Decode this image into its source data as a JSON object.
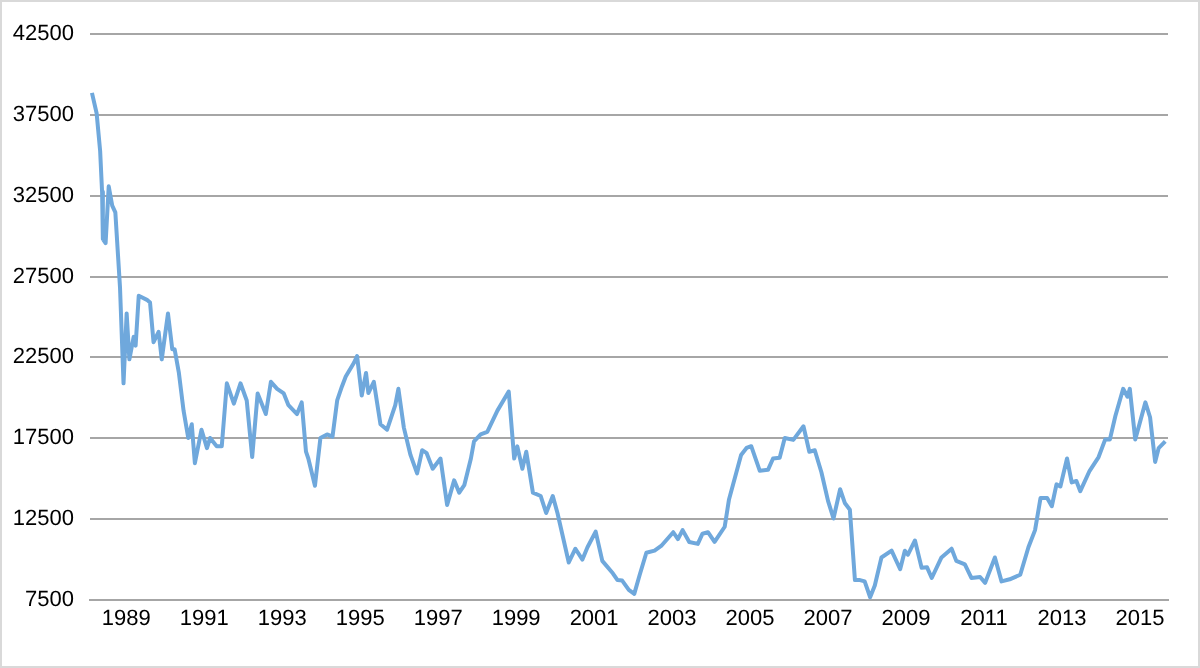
{
  "chart_data": {
    "type": "line",
    "x": [
      1988.12,
      1988.24,
      1988.33,
      1988.38,
      1988.4,
      1988.47,
      1988.55,
      1988.64,
      1988.72,
      1988.84,
      1988.93,
      1989.01,
      1989.08,
      1989.19,
      1989.24,
      1989.32,
      1989.53,
      1989.61,
      1989.7,
      1989.83,
      1989.91,
      1990.07,
      1990.18,
      1990.24,
      1990.35,
      1990.47,
      1990.59,
      1990.68,
      1990.76,
      1990.93,
      1991.07,
      1991.15,
      1991.32,
      1991.45,
      1991.58,
      1991.76,
      1991.93,
      1992.09,
      1992.23,
      1992.37,
      1992.58,
      1992.71,
      1992.87,
      1993.04,
      1993.16,
      1993.38,
      1993.5,
      1993.61,
      1993.67,
      1993.84,
      1993.98,
      1994.15,
      1994.29,
      1994.41,
      1994.53,
      1994.63,
      1994.84,
      1994.92,
      1995.04,
      1995.15,
      1995.21,
      1995.35,
      1995.52,
      1995.69,
      1995.9,
      1995.98,
      1996.12,
      1996.29,
      1996.46,
      1996.59,
      1996.7,
      1996.86,
      1997.06,
      1997.23,
      1997.41,
      1997.54,
      1997.67,
      1997.84,
      1997.92,
      1998.09,
      1998.26,
      1998.52,
      1998.81,
      1998.95,
      1999.03,
      1999.16,
      1999.26,
      1999.43,
      1999.63,
      1999.77,
      1999.94,
      2000.06,
      2000.35,
      2000.52,
      2000.7,
      2000.83,
      2001.04,
      2001.21,
      2001.48,
      2001.6,
      2001.72,
      2001.89,
      2002.03,
      2002.17,
      2002.34,
      2002.55,
      2002.72,
      2003.03,
      2003.15,
      2003.27,
      2003.44,
      2003.66,
      2003.78,
      2003.92,
      2004.09,
      2004.35,
      2004.46,
      2004.77,
      2004.91,
      2005.03,
      2005.25,
      2005.46,
      2005.59,
      2005.76,
      2005.89,
      2006.11,
      2006.37,
      2006.52,
      2006.66,
      2006.83,
      2007.0,
      2007.14,
      2007.31,
      2007.43,
      2007.56,
      2007.69,
      2007.82,
      2007.94,
      2008.08,
      2008.2,
      2008.37,
      2008.63,
      2008.85,
      2008.97,
      2009.05,
      2009.23,
      2009.4,
      2009.54,
      2009.66,
      2009.91,
      2010.17,
      2010.29,
      2010.51,
      2010.68,
      2010.9,
      2011.03,
      2011.28,
      2011.45,
      2011.66,
      2011.93,
      2012.14,
      2012.31,
      2012.45,
      2012.62,
      2012.74,
      2012.86,
      2012.96,
      2013.13,
      2013.25,
      2013.37,
      2013.47,
      2013.71,
      2013.94,
      2014.11,
      2014.23,
      2014.37,
      2014.57,
      2014.68,
      2014.74,
      2014.88,
      2015.14,
      2015.26,
      2015.39,
      2015.48,
      2015.65
    ],
    "series": [
      {
        "color": "#6fa8dc",
        "values": [
          38860,
          37600,
          35270,
          32740,
          29820,
          29570,
          33080,
          31890,
          31470,
          26810,
          20900,
          25220,
          22380,
          23770,
          23230,
          26310,
          26060,
          25890,
          23440,
          24080,
          22380,
          25220,
          23010,
          23010,
          21540,
          19210,
          17520,
          18370,
          15960,
          18030,
          16890,
          17520,
          17010,
          17010,
          20900,
          19640,
          20900,
          19840,
          16340,
          20270,
          19000,
          20990,
          20560,
          20270,
          19550,
          19000,
          19720,
          16670,
          16250,
          14560,
          17520,
          17740,
          17600,
          19840,
          20690,
          21320,
          22170,
          22590,
          20140,
          21540,
          20300,
          20990,
          18370,
          18030,
          19550,
          20560,
          18160,
          16470,
          15330,
          16760,
          16600,
          15620,
          16250,
          13380,
          14900,
          14140,
          14600,
          16250,
          17310,
          17740,
          17900,
          19210,
          20390,
          16250,
          17000,
          15620,
          16670,
          14140,
          13930,
          12880,
          13930,
          12880,
          9820,
          10670,
          10000,
          10760,
          11730,
          9920,
          9150,
          8730,
          8700,
          8130,
          7880,
          9060,
          10420,
          10550,
          10840,
          11690,
          11260,
          11820,
          11090,
          10970,
          11600,
          11690,
          11090,
          12030,
          13720,
          16470,
          16900,
          17010,
          15490,
          15550,
          16250,
          16300,
          17520,
          17400,
          18240,
          16670,
          16760,
          15400,
          13630,
          12540,
          14350,
          13500,
          13080,
          8730,
          8730,
          8650,
          7670,
          8400,
          10130,
          10550,
          9400,
          10550,
          10300,
          11180,
          9490,
          9520,
          8860,
          10130,
          10670,
          9920,
          9700,
          8860,
          8920,
          8560,
          10130,
          8650,
          8780,
          9060,
          10760,
          11820,
          13800,
          13800,
          13300,
          14650,
          14520,
          16250,
          14770,
          14860,
          14230,
          15490,
          16340,
          17430,
          17430,
          18880,
          20560,
          20070,
          20560,
          17430,
          19720,
          18800,
          16040,
          16890,
          17310
        ]
      }
    ],
    "xlim": [
      1988.07,
      2015.72
    ],
    "xticks": [
      1989,
      1991,
      1993,
      1995,
      1997,
      1999,
      2001,
      2003,
      2005,
      2007,
      2009,
      2011,
      2013,
      2015
    ],
    "ylim": [
      7500,
      42500
    ],
    "yticks": [
      7500,
      12500,
      17500,
      22500,
      27500,
      32500,
      37500,
      42500
    ],
    "grid": "y",
    "legend": false,
    "marker": "none",
    "line_style": "solid"
  }
}
